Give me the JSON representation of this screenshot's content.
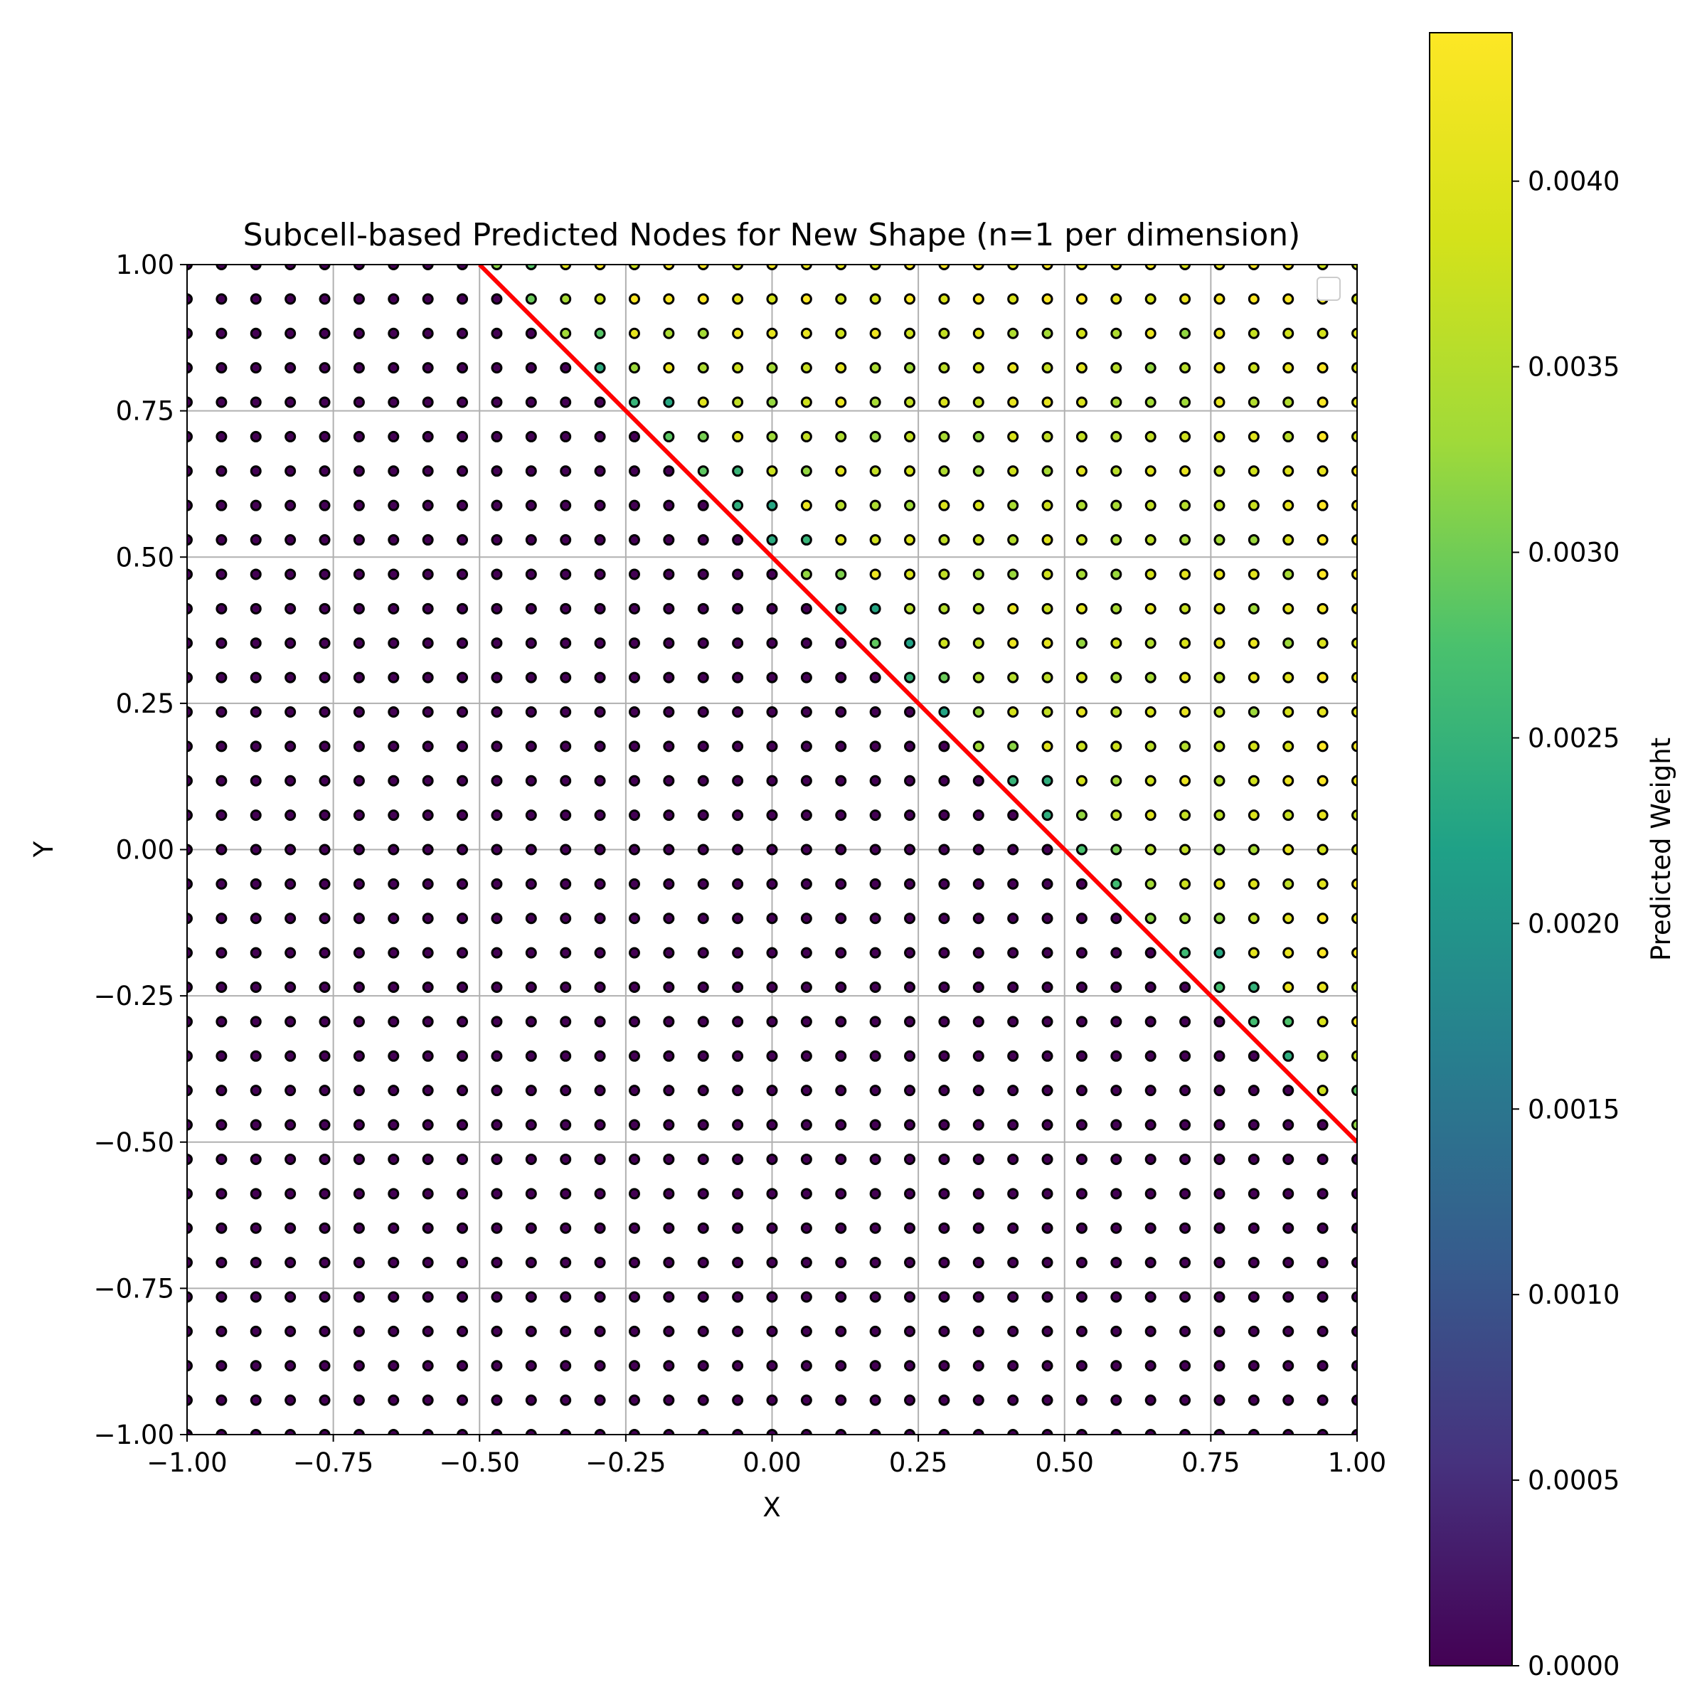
{
  "chart_data": {
    "type": "scatter",
    "title": "Subcell-based Predicted Nodes for New Shape (n=1 per dimension)",
    "xlabel": "X",
    "ylabel": "Y",
    "xlim": [
      -1.0,
      1.0
    ],
    "ylim": [
      -1.0,
      1.0
    ],
    "x_ticks": [
      -1.0,
      -0.75,
      -0.5,
      -0.25,
      0.0,
      0.25,
      0.5,
      0.75,
      1.0
    ],
    "y_ticks": [
      -1.0,
      -0.75,
      -0.5,
      -0.25,
      0.0,
      0.25,
      0.5,
      0.75,
      1.0
    ],
    "x_tick_labels": [
      "−1.00",
      "−0.75",
      "−0.50",
      "−0.25",
      "0.00",
      "0.25",
      "0.50",
      "0.75",
      "1.00"
    ],
    "y_tick_labels": [
      "−1.00",
      "−0.75",
      "−0.50",
      "−0.25",
      "0.00",
      "0.25",
      "0.50",
      "0.75",
      "1.00"
    ],
    "grid": true,
    "node_grid": {
      "x_start": -1.0,
      "x_end": 1.0,
      "y_start": -1.0,
      "y_end": 1.0,
      "points_per_axis": 35,
      "description_of_values": "weight is near 0 below the line y = -x + 0.5; above it weights range roughly 0.0027-0.0043"
    },
    "boundary_line": {
      "x": [
        -0.5,
        1.0
      ],
      "y": [
        1.0,
        -0.5
      ],
      "color": "#ff0000"
    },
    "colorbar": {
      "label": "Predicted Weight",
      "colormap": "viridis",
      "vmin": 0.0,
      "vmax": 0.0044,
      "ticks": [
        0.0,
        0.0005,
        0.001,
        0.0015,
        0.002,
        0.0025,
        0.003,
        0.0035,
        0.004
      ],
      "tick_labels": [
        "0.0000",
        "0.0005",
        "0.0010",
        "0.0015",
        "0.0020",
        "0.0025",
        "0.0030",
        "0.0035",
        "0.0040"
      ]
    },
    "legend": {
      "placement": "top-right",
      "entries": []
    },
    "colors": {
      "marker_edge": "#000000",
      "grid": "#b0b0b0",
      "line": "#ff0000"
    }
  }
}
